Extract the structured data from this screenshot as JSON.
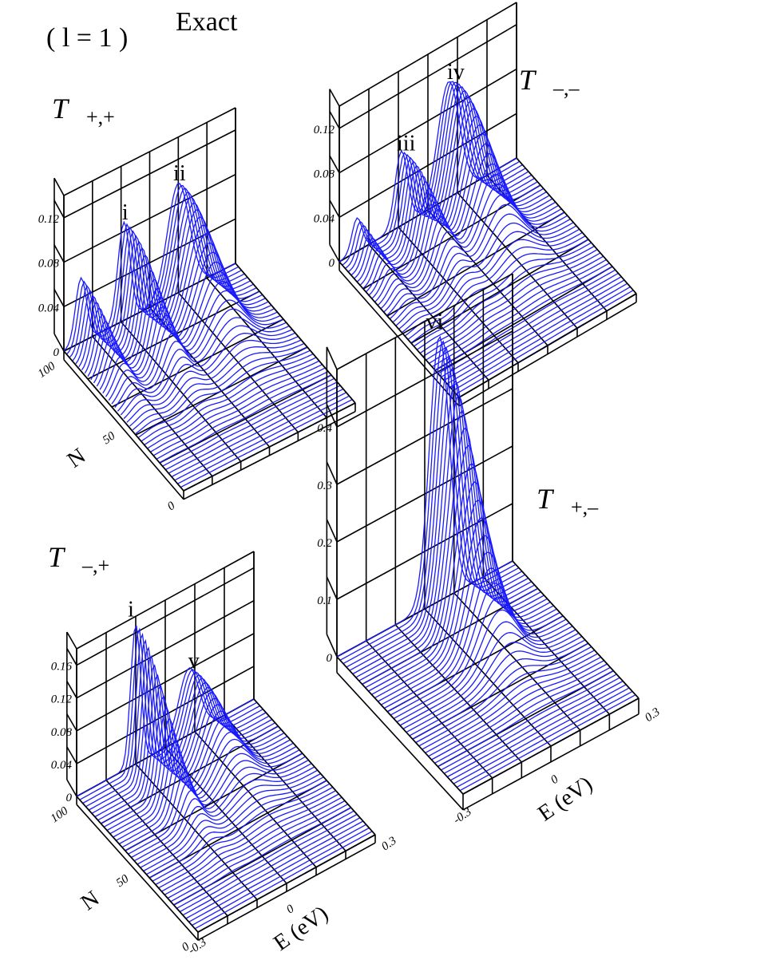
{
  "header": {
    "case_label": "( l = 1 )",
    "method_label": "Exact"
  },
  "axes_labels": {
    "n_axis": "N",
    "e_axis": "E",
    "e_unit": "(eV)"
  },
  "colors": {
    "curve": "#1a1aff",
    "frame": "#000000"
  },
  "chart_data": [
    {
      "type": "line",
      "title": "T+,+",
      "title_main": "T",
      "title_sub": "+,+",
      "xlabel": "",
      "ylabel": "",
      "nlabel": "N",
      "z_ticks": [
        "0",
        "0.04",
        "0.08",
        "0.12"
      ],
      "zlim": [
        0,
        0.14
      ],
      "n_ticks": [
        "100",
        "50",
        "0"
      ],
      "e_ticks": [],
      "xlim": [
        -0.3,
        0.3
      ],
      "nlim": [
        0,
        100
      ],
      "annotations": [
        "i",
        "ii"
      ],
      "peaks": [
        {
          "label": "",
          "E": -0.24,
          "N": 100,
          "value": 0.058,
          "width": 0.045
        },
        {
          "label": "i",
          "E": -0.09,
          "N": 95,
          "value": 0.09,
          "width": 0.05
        },
        {
          "label": "ii",
          "E": 0.1,
          "N": 95,
          "value": 0.1,
          "width": 0.09
        }
      ]
    },
    {
      "type": "line",
      "title": "T-,-",
      "title_main": "T",
      "title_sub": "-,-",
      "xlabel": "",
      "ylabel": "",
      "nlabel": "",
      "z_ticks": [
        "0",
        "0.04",
        "0.08",
        "0.12"
      ],
      "zlim": [
        0,
        0.14
      ],
      "n_ticks": [],
      "e_ticks": [],
      "xlim": [
        -0.3,
        0.3
      ],
      "nlim": [
        0,
        100
      ],
      "annotations": [
        "iii",
        "iv"
      ],
      "peaks": [
        {
          "label": "",
          "E": -0.24,
          "N": 100,
          "value": 0.03,
          "width": 0.04
        },
        {
          "label": "iii",
          "E": -0.09,
          "N": 92,
          "value": 0.07,
          "width": 0.05
        },
        {
          "label": "iv",
          "E": 0.07,
          "N": 90,
          "value": 0.112,
          "width": 0.085
        }
      ]
    },
    {
      "type": "line",
      "title": "T-,+",
      "title_main": "T",
      "title_sub": "-,+",
      "xlabel": "E (eV)",
      "ylabel": "",
      "nlabel": "N",
      "z_ticks": [
        "0",
        "0.04",
        "0.08",
        "0.12",
        "0.16"
      ],
      "zlim": [
        0,
        0.18
      ],
      "n_ticks": [
        "100",
        "50",
        "0"
      ],
      "e_ticks": [
        "-0.3",
        "0",
        "0.3"
      ],
      "xlim": [
        -0.3,
        0.3
      ],
      "nlim": [
        0,
        100
      ],
      "annotations": [
        "i",
        "v"
      ],
      "peaks": [
        {
          "label": "i",
          "E": -0.1,
          "N": 100,
          "value": 0.17,
          "width": 0.04
        },
        {
          "label": "v",
          "E": 0.08,
          "N": 92,
          "value": 0.085,
          "width": 0.08
        }
      ]
    },
    {
      "type": "line",
      "title": "T+,-",
      "title_main": "T",
      "title_sub": "+,-",
      "xlabel": "E (eV)",
      "ylabel": "",
      "nlabel": "",
      "z_ticks": [
        "0",
        "0.1",
        "0.2",
        "0.3",
        "0.4"
      ],
      "zlim": [
        0,
        0.5
      ],
      "n_ticks": [],
      "e_ticks": [
        "-0.3",
        "0",
        "0.3"
      ],
      "xlim": [
        -0.3,
        0.3
      ],
      "nlim": [
        0,
        100
      ],
      "annotations": [
        "vi"
      ],
      "peaks": [
        {
          "label": "vi",
          "E": 0.05,
          "N": 100,
          "value": 0.46,
          "width": 0.08
        }
      ]
    }
  ]
}
